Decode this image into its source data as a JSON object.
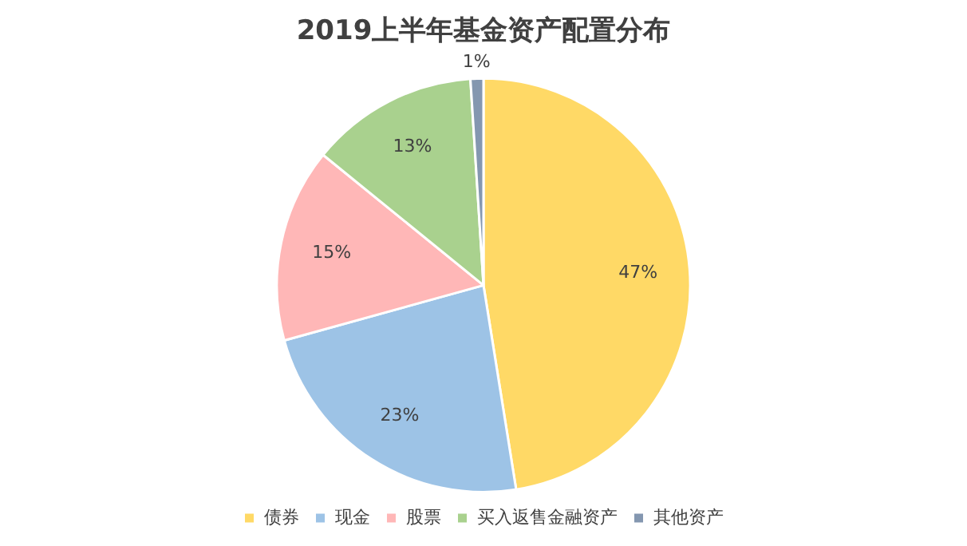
{
  "chart_data": {
    "type": "pie",
    "title": "2019上半年基金资产配置分布",
    "categories": [
      "债券",
      "现金",
      "股票",
      "买入返售金融资产",
      "其他资产"
    ],
    "values": [
      47,
      23,
      15,
      13,
      1
    ],
    "value_labels": [
      "47%",
      "23%",
      "15%",
      "13%",
      "1%"
    ],
    "colors": [
      "#ffd966",
      "#9dc3e6",
      "#ffb7b7",
      "#a9d18e",
      "#8497b0"
    ],
    "legend": "bottom"
  }
}
